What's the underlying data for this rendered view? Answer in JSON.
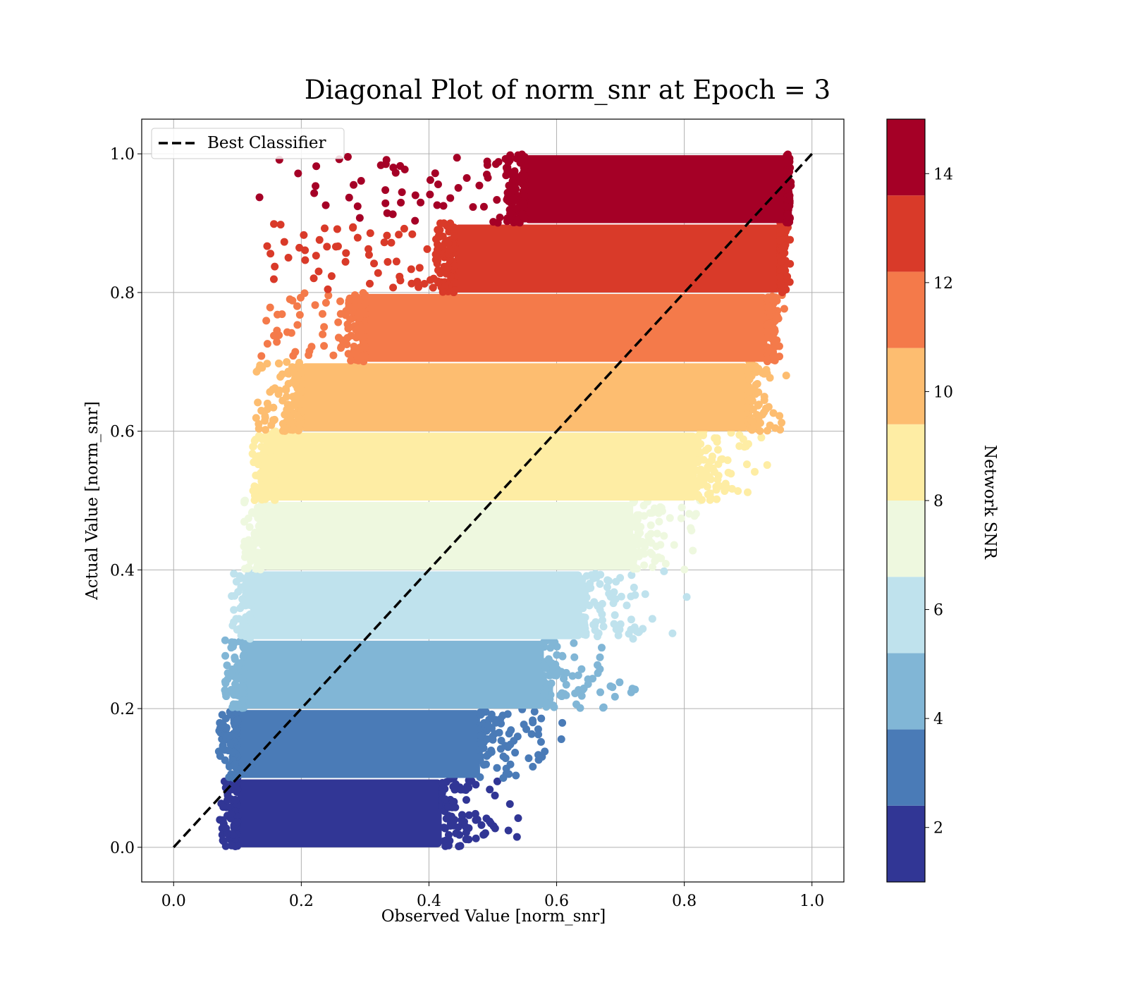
{
  "chart_data": {
    "type": "scatter",
    "title": "Diagonal Plot of norm_snr at Epoch = 3",
    "xlabel": "Observed Value [norm_snr]",
    "ylabel": "Actual Value [norm_snr]",
    "xlim": [
      -0.05,
      1.05
    ],
    "ylim": [
      -0.05,
      1.05
    ],
    "xticks": [
      "0.0",
      "0.2",
      "0.4",
      "0.6",
      "0.8",
      "1.0"
    ],
    "yticks": [
      "0.0",
      "0.2",
      "0.4",
      "0.6",
      "0.8",
      "1.0"
    ],
    "grid": true,
    "legend": {
      "placement": "upper-left",
      "entries": [
        "Best Classifier"
      ]
    },
    "reference_line": {
      "name": "Best Classifier",
      "x": [
        0.0,
        1.0
      ],
      "y": [
        0.0,
        1.0
      ],
      "style": "dashed",
      "color": "#000000"
    },
    "colorbar": {
      "label": "Network SNR",
      "range": [
        1,
        15
      ],
      "ticks": [
        "2",
        "4",
        "6",
        "8",
        "10",
        "12",
        "14"
      ],
      "colormap": "RdYlBu_r",
      "colors": [
        "#313695",
        "#4a7bb7",
        "#81b6d6",
        "#bfe2ed",
        "#eef8df",
        "#feeda4",
        "#fdbd70",
        "#f47a4a",
        "#d93a29",
        "#a50026"
      ]
    },
    "bands": [
      {
        "y": [
          0.0,
          0.1
        ],
        "core_x": [
          0.1,
          0.42
        ],
        "spread_x": 0.15,
        "color": "#313695"
      },
      {
        "y": [
          0.1,
          0.2
        ],
        "core_x": [
          0.1,
          0.48
        ],
        "spread_x": 0.15,
        "color": "#4a7bb7"
      },
      {
        "y": [
          0.2,
          0.3
        ],
        "core_x": [
          0.11,
          0.58
        ],
        "spread_x": 0.16,
        "color": "#81b6d6"
      },
      {
        "y": [
          0.3,
          0.4
        ],
        "core_x": [
          0.12,
          0.64
        ],
        "spread_x": 0.17,
        "color": "#bfe2ed"
      },
      {
        "y": [
          0.4,
          0.5
        ],
        "core_x": [
          0.14,
          0.72
        ],
        "spread_x": 0.15,
        "color": "#eef8df"
      },
      {
        "y": [
          0.5,
          0.6
        ],
        "core_x": [
          0.16,
          0.82
        ],
        "spread_x": 0.12,
        "color": "#feeda4"
      },
      {
        "y": [
          0.6,
          0.7
        ],
        "core_x": [
          0.2,
          0.9
        ],
        "spread_x": 0.07,
        "color": "#fdbd70"
      },
      {
        "y": [
          0.7,
          0.8
        ],
        "core_x": [
          0.3,
          0.93
        ],
        "spread_x": 0.03,
        "color": "#f47a4a"
      },
      {
        "y": [
          0.8,
          0.9
        ],
        "core_x": [
          0.44,
          0.95
        ],
        "spread_x": 0.02,
        "color": "#d93a29"
      },
      {
        "y": [
          0.9,
          1.0
        ],
        "core_x": [
          0.55,
          0.96
        ],
        "spread_x": 0.01,
        "color": "#a50026"
      }
    ]
  }
}
